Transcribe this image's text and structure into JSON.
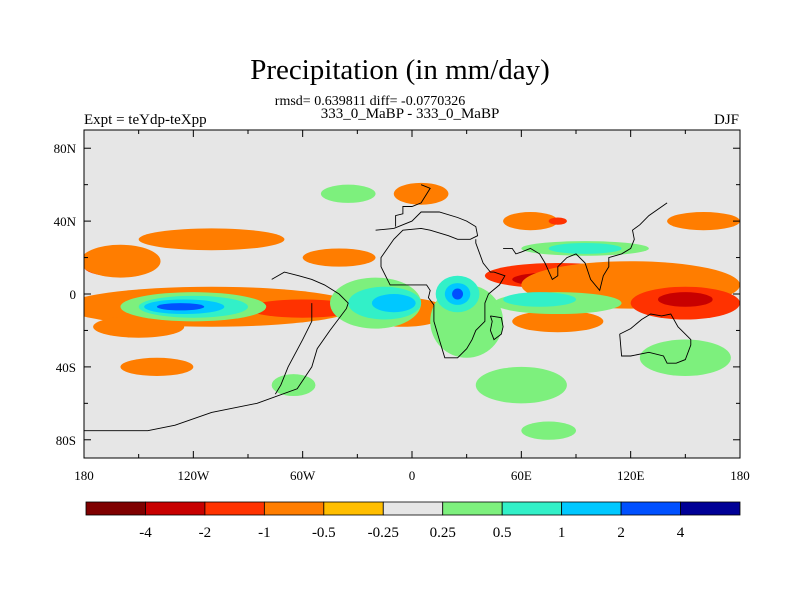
{
  "chart_data": {
    "type": "contour-map",
    "title": "Precipitation (in mm/day)",
    "stats_line": "rmsd= 0.639811 diff= -0.0770326",
    "subtitle": "333_0_MaBP - 333_0_MaBP",
    "left_label": "Expt = teYdp-teXpp",
    "right_label": "DJF",
    "xlim": [
      -180,
      180
    ],
    "ylim": [
      -90,
      90
    ],
    "x_ticks": [
      {
        "value": -180,
        "label": "180"
      },
      {
        "value": -120,
        "label": "120W"
      },
      {
        "value": -60,
        "label": "60W"
      },
      {
        "value": 0,
        "label": "0"
      },
      {
        "value": 60,
        "label": "60E"
      },
      {
        "value": 120,
        "label": "120E"
      },
      {
        "value": 180,
        "label": "180"
      }
    ],
    "y_ticks": [
      {
        "value": 80,
        "label": "80N"
      },
      {
        "value": 40,
        "label": "40N"
      },
      {
        "value": 0,
        "label": "0"
      },
      {
        "value": -40,
        "label": "40S"
      },
      {
        "value": -80,
        "label": "80S"
      }
    ],
    "colorbar": {
      "colors": [
        "#7f0000",
        "#c80000",
        "#ff3200",
        "#ff7d00",
        "#ffbe00",
        "#e6e6e6",
        "#7df07d",
        "#32f0c8",
        "#00c8ff",
        "#0050ff",
        "#000096"
      ],
      "levels": [
        "-4",
        "-2",
        "-1",
        "-0.5",
        "-0.25",
        "0.25",
        "0.5",
        "1",
        "2",
        "4"
      ]
    },
    "background_color": "#e6e6e6",
    "regions": [
      {
        "level": "-1",
        "cx": -165,
        "cy": 15,
        "rx": 15,
        "ry": 5
      },
      {
        "level": "-0.5",
        "cx": -160,
        "cy": 18,
        "rx": 22,
        "ry": 9
      },
      {
        "level": "-1",
        "cx": -140,
        "cy": -7,
        "rx": 35,
        "ry": 6
      },
      {
        "level": "-0.5",
        "cx": -110,
        "cy": -7,
        "rx": 80,
        "ry": 11
      },
      {
        "level": "-1",
        "cx": -60,
        "cy": -8,
        "rx": 30,
        "ry": 5
      },
      {
        "level": "-0.5",
        "cx": -150,
        "cy": -18,
        "rx": 25,
        "ry": 6
      },
      {
        "level": "-0.5",
        "cx": -140,
        "cy": -40,
        "rx": 20,
        "ry": 5
      },
      {
        "level": "-0.5",
        "cx": -110,
        "cy": 30,
        "rx": 40,
        "ry": 6
      },
      {
        "level": "-0.5",
        "cx": -5,
        "cy": -10,
        "rx": 25,
        "ry": 8
      },
      {
        "level": "-0.5",
        "cx": -40,
        "cy": 20,
        "rx": 20,
        "ry": 5
      },
      {
        "level": "-1",
        "cx": 80,
        "cy": 10,
        "rx": 40,
        "ry": 7
      },
      {
        "level": "-2",
        "cx": 80,
        "cy": 8,
        "rx": 25,
        "ry": 4
      },
      {
        "level": "-0.5",
        "cx": 120,
        "cy": 5,
        "rx": 60,
        "ry": 13
      },
      {
        "level": "-1",
        "cx": 150,
        "cy": -5,
        "rx": 30,
        "ry": 9
      },
      {
        "level": "-2",
        "cx": 150,
        "cy": -3,
        "rx": 15,
        "ry": 4
      },
      {
        "level": "-0.5",
        "cx": 5,
        "cy": 55,
        "rx": 15,
        "ry": 6
      },
      {
        "level": "-0.5",
        "cx": 65,
        "cy": 40,
        "rx": 15,
        "ry": 5
      },
      {
        "level": "-1",
        "cx": 80,
        "cy": 40,
        "rx": 5,
        "ry": 2
      },
      {
        "level": "-0.5",
        "cx": 160,
        "cy": 40,
        "rx": 20,
        "ry": 5
      },
      {
        "level": "-0.5",
        "cx": 80,
        "cy": -15,
        "rx": 25,
        "ry": 6
      },
      {
        "level": "0.25",
        "cx": -120,
        "cy": -7,
        "rx": 40,
        "ry": 8
      },
      {
        "level": "0.5",
        "cx": -120,
        "cy": -7,
        "rx": 30,
        "ry": 6
      },
      {
        "level": "1",
        "cx": -125,
        "cy": -7,
        "rx": 22,
        "ry": 4
      },
      {
        "level": "2",
        "cx": -127,
        "cy": -7,
        "rx": 13,
        "ry": 2
      },
      {
        "level": "0.25",
        "cx": -20,
        "cy": -5,
        "rx": 25,
        "ry": 14
      },
      {
        "level": "0.5",
        "cx": -15,
        "cy": -5,
        "rx": 20,
        "ry": 9
      },
      {
        "level": "1",
        "cx": -10,
        "cy": -5,
        "rx": 12,
        "ry": 5
      },
      {
        "level": "0.25",
        "cx": 30,
        "cy": -15,
        "rx": 20,
        "ry": 20
      },
      {
        "level": "0.5",
        "cx": 25,
        "cy": 0,
        "rx": 12,
        "ry": 10
      },
      {
        "level": "1",
        "cx": 25,
        "cy": 0,
        "rx": 7,
        "ry": 6
      },
      {
        "level": "2",
        "cx": 25,
        "cy": 0,
        "rx": 3,
        "ry": 3
      },
      {
        "level": "0.25",
        "cx": 60,
        "cy": -50,
        "rx": 25,
        "ry": 10
      },
      {
        "level": "0.25",
        "cx": -65,
        "cy": -50,
        "rx": 12,
        "ry": 6
      },
      {
        "level": "0.25",
        "cx": 80,
        "cy": -5,
        "rx": 35,
        "ry": 6
      },
      {
        "level": "0.5",
        "cx": 70,
        "cy": -3,
        "rx": 20,
        "ry": 4
      },
      {
        "level": "0.25",
        "cx": 95,
        "cy": 25,
        "rx": 35,
        "ry": 4
      },
      {
        "level": "0.5",
        "cx": 95,
        "cy": 25,
        "rx": 20,
        "ry": 3
      },
      {
        "level": "0.25",
        "cx": 150,
        "cy": -35,
        "rx": 25,
        "ry": 10
      },
      {
        "level": "0.25",
        "cx": -35,
        "cy": 55,
        "rx": 15,
        "ry": 5
      },
      {
        "level": "0.25",
        "cx": 75,
        "cy": -75,
        "rx": 15,
        "ry": 5
      }
    ],
    "coastlines": [
      [
        [
          -180,
          -75
        ],
        [
          -145,
          -75
        ],
        [
          -130,
          -72
        ],
        [
          -110,
          -65
        ],
        [
          -85,
          -60
        ],
        [
          -63,
          -52
        ],
        [
          -55,
          -40
        ],
        [
          -52,
          -30
        ],
        [
          -45,
          -20
        ],
        [
          -36,
          -8
        ],
        [
          -35,
          -5
        ],
        [
          -40,
          0
        ],
        [
          -48,
          5
        ],
        [
          -55,
          8
        ],
        [
          -62,
          10
        ],
        [
          -70,
          12
        ],
        [
          -77,
          8
        ]
      ],
      [
        [
          -55,
          -5
        ],
        [
          -55,
          -15
        ],
        [
          -60,
          -25
        ],
        [
          -68,
          -40
        ],
        [
          -72,
          -50
        ],
        [
          -75,
          -55
        ]
      ],
      [
        [
          -20,
          35
        ],
        [
          -10,
          36
        ],
        [
          0,
          40
        ],
        [
          5,
          45
        ],
        [
          15,
          45
        ],
        [
          25,
          42
        ],
        [
          30,
          40
        ],
        [
          35,
          37
        ],
        [
          36,
          32
        ],
        [
          32,
          30
        ],
        [
          25,
          30
        ],
        [
          20,
          32
        ],
        [
          10,
          35
        ],
        [
          5,
          36
        ],
        [
          -5,
          35
        ],
        [
          -10,
          30
        ],
        [
          -17,
          20
        ],
        [
          -17,
          15
        ],
        [
          -12,
          5
        ],
        [
          -8,
          5
        ],
        [
          0,
          5
        ],
        [
          8,
          5
        ],
        [
          10,
          2
        ],
        [
          9,
          -2
        ],
        [
          12,
          -6
        ],
        [
          12,
          -15
        ],
        [
          15,
          -25
        ],
        [
          18,
          -35
        ],
        [
          25,
          -35
        ],
        [
          30,
          -30
        ],
        [
          33,
          -25
        ],
        [
          35,
          -20
        ],
        [
          40,
          -15
        ],
        [
          40,
          -5
        ],
        [
          42,
          0
        ],
        [
          48,
          5
        ],
        [
          51,
          10
        ],
        [
          45,
          12
        ],
        [
          43,
          12
        ],
        [
          39,
          17
        ],
        [
          35,
          28
        ],
        [
          35,
          30
        ]
      ],
      [
        [
          5,
          60
        ],
        [
          10,
          58
        ],
        [
          5,
          50
        ],
        [
          0,
          48
        ],
        [
          -5,
          48
        ],
        [
          -5,
          44
        ],
        [
          -9,
          43
        ],
        [
          -9,
          37
        ]
      ],
      [
        [
          50,
          25
        ],
        [
          55,
          25
        ],
        [
          57,
          22
        ],
        [
          60,
          23
        ],
        [
          65,
          25
        ],
        [
          70,
          22
        ],
        [
          73,
          17
        ],
        [
          77,
          8
        ],
        [
          80,
          10
        ],
        [
          80,
          15
        ],
        [
          85,
          20
        ],
        [
          90,
          22
        ],
        [
          95,
          17
        ],
        [
          98,
          8
        ],
        [
          103,
          2
        ],
        [
          105,
          10
        ],
        [
          108,
          15
        ],
        [
          108,
          20
        ],
        [
          115,
          22
        ],
        [
          120,
          25
        ],
        [
          122,
          30
        ],
        [
          121,
          35
        ],
        [
          125,
          38
        ],
        [
          130,
          43
        ],
        [
          140,
          50
        ]
      ],
      [
        [
          114,
          -22
        ],
        [
          115,
          -34
        ],
        [
          120,
          -34
        ],
        [
          130,
          -32
        ],
        [
          138,
          -34
        ],
        [
          140,
          -38
        ],
        [
          145,
          -38
        ],
        [
          150,
          -36
        ],
        [
          153,
          -28
        ],
        [
          153,
          -25
        ],
        [
          146,
          -18
        ],
        [
          142,
          -11
        ],
        [
          137,
          -12
        ],
        [
          131,
          -11
        ],
        [
          126,
          -14
        ],
        [
          120,
          -19
        ],
        [
          114,
          -22
        ]
      ],
      [
        [
          43,
          -12
        ],
        [
          49,
          -13
        ],
        [
          50,
          -18
        ],
        [
          49,
          -22
        ],
        [
          45,
          -25
        ],
        [
          43,
          -20
        ],
        [
          44,
          -15
        ],
        [
          43,
          -12
        ]
      ]
    ]
  }
}
